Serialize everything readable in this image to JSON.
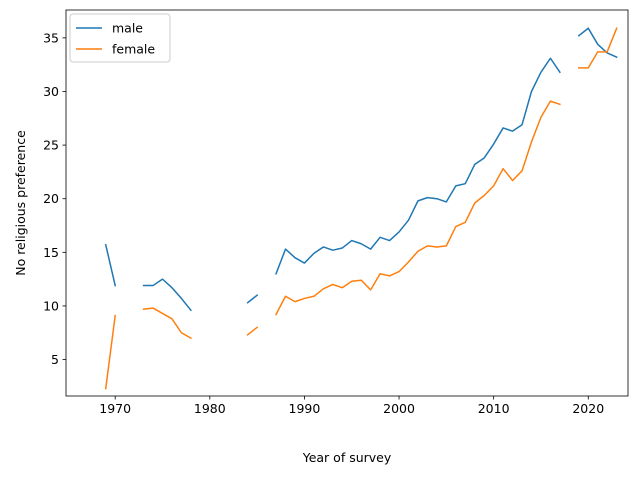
{
  "chart_data": {
    "type": "line",
    "title": "",
    "xlabel": "Year of survey",
    "ylabel": "No religious preference",
    "xlim": [
      1964.8,
      2024.2
    ],
    "ylim": [
      1.6,
      37.6
    ],
    "xticks": [
      1970,
      1980,
      1990,
      2000,
      2010,
      2020
    ],
    "yticks": [
      5,
      10,
      15,
      20,
      25,
      30,
      35
    ],
    "grid": false,
    "legend": "upper-left",
    "series": [
      {
        "name": "male",
        "color": "#1f77b4",
        "points": [
          [
            1969,
            15.7
          ],
          [
            1970,
            11.9
          ],
          [
            1971,
            null
          ],
          [
            1973,
            11.9
          ],
          [
            1974,
            11.9
          ],
          [
            1975,
            12.5
          ],
          [
            1976,
            11.7
          ],
          [
            1977,
            10.7
          ],
          [
            1978,
            9.6
          ],
          [
            1979,
            null
          ],
          [
            1984,
            10.3
          ],
          [
            1985,
            11.0
          ],
          [
            1986,
            null
          ],
          [
            1987,
            13.0
          ],
          [
            1988,
            15.3
          ],
          [
            1989,
            14.5
          ],
          [
            1990,
            14.0
          ],
          [
            1991,
            14.9
          ],
          [
            1992,
            15.5
          ],
          [
            1993,
            15.2
          ],
          [
            1994,
            15.4
          ],
          [
            1995,
            16.1
          ],
          [
            1996,
            15.8
          ],
          [
            1997,
            15.3
          ],
          [
            1998,
            16.4
          ],
          [
            1999,
            16.1
          ],
          [
            2000,
            16.9
          ],
          [
            2001,
            18.0
          ],
          [
            2002,
            19.8
          ],
          [
            2003,
            20.1
          ],
          [
            2004,
            20.0
          ],
          [
            2005,
            19.7
          ],
          [
            2006,
            21.2
          ],
          [
            2007,
            21.4
          ],
          [
            2008,
            23.2
          ],
          [
            2009,
            23.8
          ],
          [
            2010,
            25.1
          ],
          [
            2011,
            26.6
          ],
          [
            2012,
            26.3
          ],
          [
            2013,
            26.9
          ],
          [
            2014,
            30.0
          ],
          [
            2015,
            31.8
          ],
          [
            2016,
            33.1
          ],
          [
            2017,
            31.8
          ],
          [
            2018,
            null
          ],
          [
            2019,
            35.2
          ],
          [
            2020,
            35.9
          ],
          [
            2021,
            34.4
          ],
          [
            2022,
            33.6
          ],
          [
            2023,
            33.2
          ]
        ]
      },
      {
        "name": "female",
        "color": "#ff7f0e",
        "points": [
          [
            1969,
            2.3
          ],
          [
            1970,
            9.1
          ],
          [
            1971,
            null
          ],
          [
            1973,
            9.7
          ],
          [
            1974,
            9.8
          ],
          [
            1975,
            9.3
          ],
          [
            1976,
            8.8
          ],
          [
            1977,
            7.5
          ],
          [
            1978,
            7.0
          ],
          [
            1979,
            null
          ],
          [
            1984,
            7.3
          ],
          [
            1985,
            8.0
          ],
          [
            1986,
            null
          ],
          [
            1987,
            9.2
          ],
          [
            1988,
            10.9
          ],
          [
            1989,
            10.4
          ],
          [
            1990,
            10.7
          ],
          [
            1991,
            10.9
          ],
          [
            1992,
            11.6
          ],
          [
            1993,
            12.0
          ],
          [
            1994,
            11.7
          ],
          [
            1995,
            12.3
          ],
          [
            1996,
            12.4
          ],
          [
            1997,
            11.5
          ],
          [
            1998,
            13.0
          ],
          [
            1999,
            12.8
          ],
          [
            2000,
            13.2
          ],
          [
            2001,
            14.1
          ],
          [
            2002,
            15.1
          ],
          [
            2003,
            15.6
          ],
          [
            2004,
            15.5
          ],
          [
            2005,
            15.6
          ],
          [
            2006,
            17.4
          ],
          [
            2007,
            17.8
          ],
          [
            2008,
            19.6
          ],
          [
            2009,
            20.3
          ],
          [
            2010,
            21.2
          ],
          [
            2011,
            22.8
          ],
          [
            2012,
            21.7
          ],
          [
            2013,
            22.6
          ],
          [
            2014,
            25.3
          ],
          [
            2015,
            27.6
          ],
          [
            2016,
            29.1
          ],
          [
            2017,
            28.8
          ],
          [
            2018,
            null
          ],
          [
            2019,
            32.2
          ],
          [
            2020,
            32.2
          ],
          [
            2021,
            33.7
          ],
          [
            2022,
            33.7
          ],
          [
            2023,
            35.9
          ]
        ]
      }
    ]
  }
}
